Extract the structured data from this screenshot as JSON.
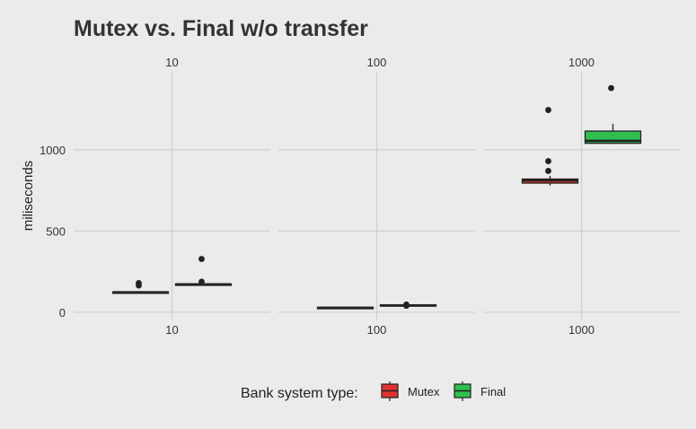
{
  "chart_data": {
    "type": "box",
    "title": "Mutex vs. Final w/o transfer",
    "xlabel": "",
    "ylabel": "miliseconds",
    "ylim": [
      -50,
      1480
    ],
    "yticks": [
      0,
      500,
      1000
    ],
    "grid": true,
    "legend": {
      "title": "Bank system type:",
      "position": "bottom",
      "entries": [
        "Mutex",
        "Final"
      ]
    },
    "colors": {
      "Mutex": "#e03131",
      "Final": "#2fbf4f"
    },
    "facets": [
      {
        "label": "10",
        "x_tick": "10",
        "boxes": [
          {
            "series": "Mutex",
            "min": 120,
            "q1": 121,
            "median": 123,
            "q3": 125,
            "max": 126,
            "outliers": [
              165,
              180
            ]
          },
          {
            "series": "Final",
            "min": 168,
            "q1": 170,
            "median": 172,
            "q3": 174,
            "max": 176,
            "outliers": [
              188,
              328
            ]
          }
        ]
      },
      {
        "label": "100",
        "x_tick": "100",
        "boxes": [
          {
            "series": "Mutex",
            "min": 24,
            "q1": 26,
            "median": 28,
            "q3": 30,
            "max": 32,
            "outliers": []
          },
          {
            "series": "Final",
            "min": 36,
            "q1": 38,
            "median": 42,
            "q3": 46,
            "max": 48,
            "outliers": [
              40,
              48
            ]
          }
        ]
      },
      {
        "label": "1000",
        "x_tick": "1000",
        "boxes": [
          {
            "series": "Mutex",
            "min": 780,
            "q1": 795,
            "median": 812,
            "q3": 820,
            "max": 840,
            "outliers": [
              870,
              930,
              1245
            ]
          },
          {
            "series": "Final",
            "min": 1035,
            "q1": 1040,
            "median": 1055,
            "q3": 1115,
            "max": 1160,
            "outliers": [
              1380
            ]
          }
        ]
      }
    ]
  }
}
